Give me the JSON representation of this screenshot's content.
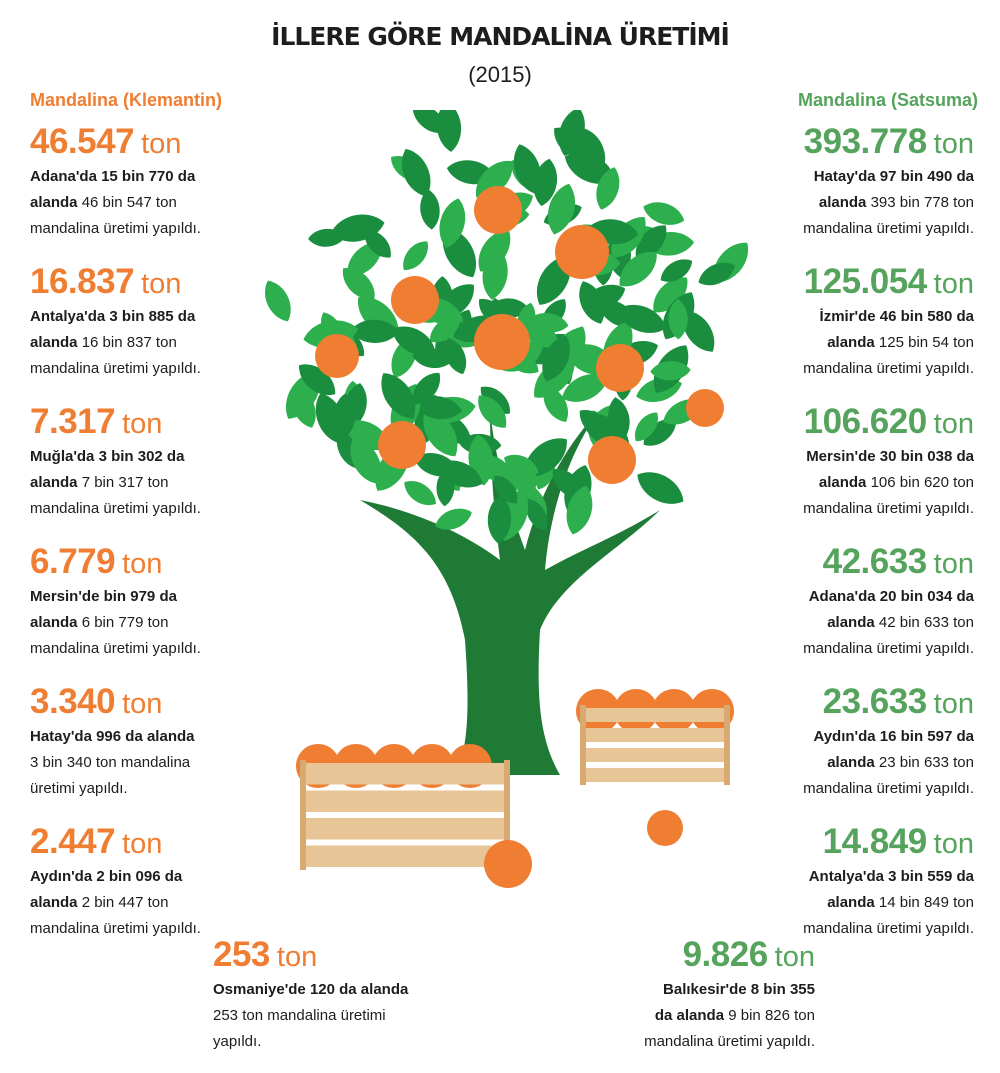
{
  "title": "İLLERE GÖRE MANDALİNA ÜRETİMİ",
  "subtitle": "(2015)",
  "unit": "ton",
  "colors": {
    "orange": "#ef7d32",
    "green": "#55a35c",
    "leaf_dark": "#1a8d3f",
    "leaf_light": "#2eaf4e",
    "trunk": "#1f7a36",
    "crate": "#e8c596"
  },
  "left_column": {
    "header": "Mandalina (Klemantin)",
    "entries": [
      {
        "value": "46.547",
        "lines": [
          [
            "Adana'da 15 bin 770 da",
            ""
          ],
          [
            "alanda",
            " 46 bin 547 ton"
          ],
          [
            "",
            "mandalina üretimi yapıldı."
          ]
        ]
      },
      {
        "value": "16.837",
        "lines": [
          [
            "Antalya'da 3 bin 885 da",
            ""
          ],
          [
            "alanda",
            " 16 bin 837 ton"
          ],
          [
            "",
            "mandalina üretimi yapıldı."
          ]
        ]
      },
      {
        "value": "7.317",
        "lines": [
          [
            "Muğla'da 3 bin 302 da",
            ""
          ],
          [
            "alanda",
            " 7 bin 317 ton"
          ],
          [
            "",
            "mandalina üretimi yapıldı."
          ]
        ]
      },
      {
        "value": "6.779",
        "lines": [
          [
            "Mersin'de bin 979 da",
            ""
          ],
          [
            "alanda",
            " 6 bin 779 ton"
          ],
          [
            "",
            "mandalina üretimi yapıldı."
          ]
        ]
      },
      {
        "value": "3.340",
        "lines": [
          [
            "Hatay'da 996 da alanda",
            ""
          ],
          [
            "",
            "3 bin 340 ton mandalina"
          ],
          [
            "",
            "üretimi yapıldı."
          ]
        ]
      },
      {
        "value": "2.447",
        "lines": [
          [
            "Aydın'da 2 bin 096 da",
            ""
          ],
          [
            "alanda",
            " 2 bin 447 ton"
          ],
          [
            "",
            "mandalina üretimi yapıldı."
          ]
        ]
      }
    ]
  },
  "right_column": {
    "header": "Mandalina (Satsuma)",
    "entries": [
      {
        "value": "393.778",
        "lines": [
          [
            "Hatay'da 97 bin 490 da",
            ""
          ],
          [
            "alanda",
            " 393 bin 778 ton"
          ],
          [
            "",
            "mandalina üretimi yapıldı."
          ]
        ]
      },
      {
        "value": "125.054",
        "lines": [
          [
            "İzmir'de 46 bin 580 da",
            ""
          ],
          [
            "alanda",
            " 125 bin 54 ton"
          ],
          [
            "",
            "mandalina üretimi yapıldı."
          ]
        ]
      },
      {
        "value": "106.620",
        "lines": [
          [
            "Mersin'de 30 bin 038 da",
            ""
          ],
          [
            "alanda",
            " 106 bin 620 ton"
          ],
          [
            "",
            "mandalina üretimi yapıldı."
          ]
        ]
      },
      {
        "value": "42.633",
        "lines": [
          [
            "Adana'da 20 bin 034 da",
            ""
          ],
          [
            "alanda",
            " 42 bin 633 ton"
          ],
          [
            "",
            "mandalina üretimi yapıldı."
          ]
        ]
      },
      {
        "value": "23.633",
        "lines": [
          [
            "Aydın'da 16 bin 597 da",
            ""
          ],
          [
            "alanda",
            " 23 bin 633 ton"
          ],
          [
            "",
            "mandalina üretimi yapıldı."
          ]
        ]
      },
      {
        "value": "14.849",
        "lines": [
          [
            "Antalya'da 3 bin 559 da",
            ""
          ],
          [
            "alanda",
            " 14 bin 849 ton"
          ],
          [
            "",
            "mandalina üretimi yapıldı."
          ]
        ]
      }
    ]
  },
  "bottom_left": {
    "value": "253",
    "lines": [
      [
        "Osmaniye'de 120 da alanda",
        ""
      ],
      [
        "",
        "253 ton mandalina üretimi"
      ],
      [
        "",
        "yapıldı."
      ]
    ]
  },
  "bottom_right": {
    "value": "9.826",
    "lines": [
      [
        "Balıkesir'de 8 bin 355",
        ""
      ],
      [
        "da alanda",
        " 9 bin 826 ton"
      ],
      [
        "",
        "mandalina üretimi yapıldı."
      ]
    ]
  }
}
